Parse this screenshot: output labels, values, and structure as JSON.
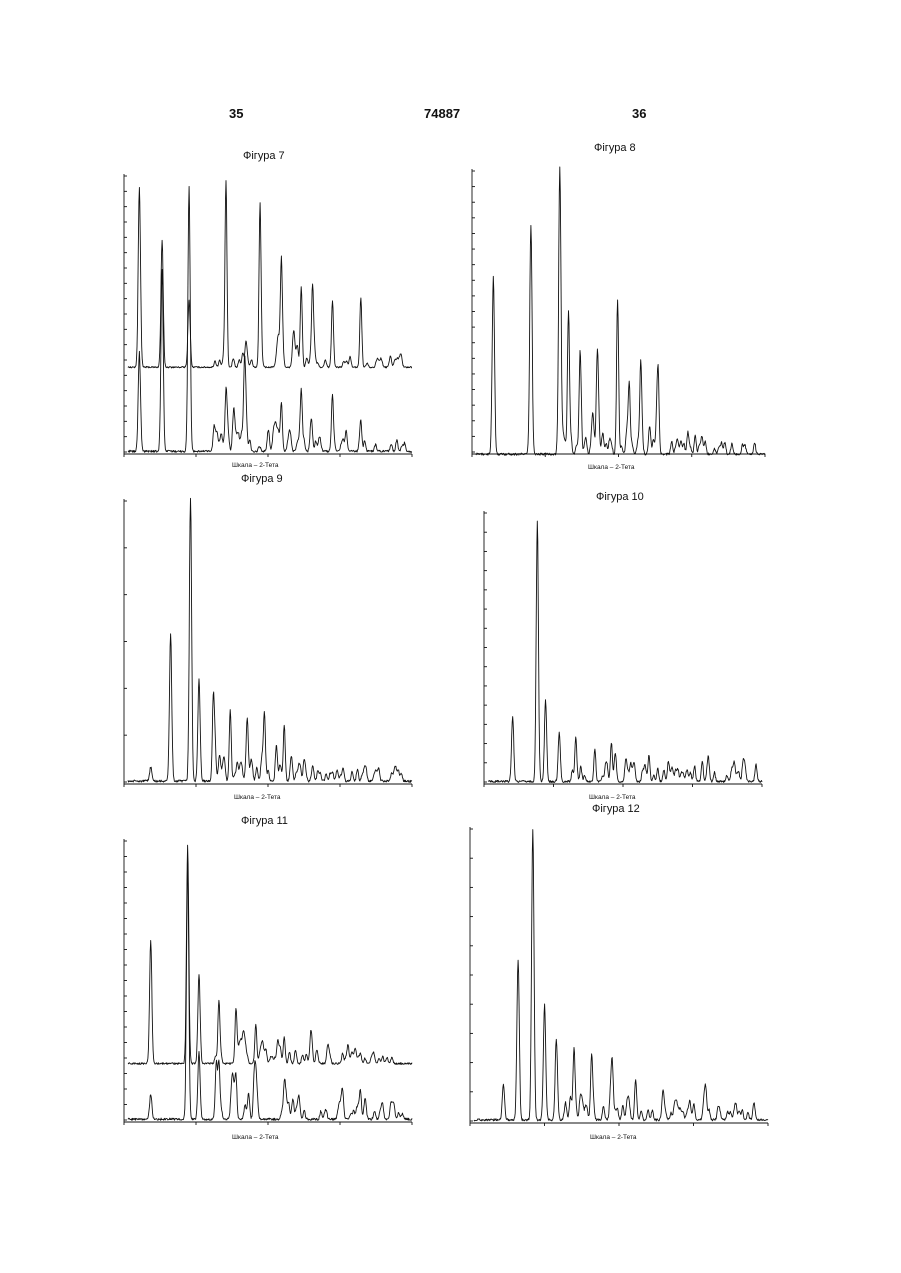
{
  "header": {
    "page_left": "35",
    "patent_number": "74887",
    "page_right": "36"
  },
  "figures": [
    {
      "id": "7",
      "title": "Фігура 7",
      "xlabel": "Шкала – 2-Тета"
    },
    {
      "id": "8",
      "title": "Фігура 8",
      "xlabel": "Шкала – 2-Тета"
    },
    {
      "id": "9",
      "title": "Фігура 9",
      "xlabel": "Шкала – 2-Тета"
    },
    {
      "id": "10",
      "title": "Фігура 10",
      "xlabel": "Шкала – 2-Тета"
    },
    {
      "id": "11",
      "title": "Фігура 11",
      "xlabel": "Шкала – 2-Тета"
    },
    {
      "id": "12",
      "title": "Фігура 12",
      "xlabel": "Шкала – 2-Тета"
    }
  ],
  "chart_data": [
    {
      "type": "line",
      "title": "Фігура 7",
      "xlabel": "Шкала – 2-Тета",
      "series": [
        {
          "peaks": [
            [
              0.04,
              0.94
            ],
            [
              0.12,
              0.66
            ],
            [
              0.215,
              0.35
            ],
            [
              0.345,
              0.95
            ],
            [
              0.465,
              0.8
            ],
            [
              0.54,
              0.54
            ],
            [
              0.61,
              0.42
            ],
            [
              0.65,
              0.36
            ],
            [
              0.72,
              0.35
            ],
            [
              0.82,
              0.31
            ]
          ]
        },
        {
          "peaks": [
            [
              0.04,
              0.36
            ],
            [
              0.12,
              0.66
            ],
            [
              0.215,
              0.96
            ],
            [
              0.345,
              0.2
            ],
            [
              0.41,
              0.28
            ],
            [
              0.54,
              0.18
            ],
            [
              0.61,
              0.2
            ],
            [
              0.72,
              0.18
            ],
            [
              0.82,
              0.1
            ]
          ]
        }
      ]
    },
    {
      "type": "line",
      "title": "Фігура 8",
      "xlabel": "Шкала – 2-Тета",
      "series": [
        {
          "peaks": [
            [
              0.06,
              0.62
            ],
            [
              0.19,
              0.8
            ],
            [
              0.29,
              1.0
            ],
            [
              0.32,
              0.5
            ],
            [
              0.36,
              0.32
            ],
            [
              0.42,
              0.3
            ],
            [
              0.49,
              0.42
            ],
            [
              0.53,
              0.25
            ],
            [
              0.57,
              0.32
            ],
            [
              0.63,
              0.28
            ]
          ]
        }
      ]
    },
    {
      "type": "line",
      "title": "Фігура 9",
      "xlabel": "Шкала – 2-Тета",
      "series": [
        {
          "peaks": [
            [
              0.08,
              0.05
            ],
            [
              0.15,
              0.52
            ],
            [
              0.22,
              1.0
            ],
            [
              0.25,
              0.36
            ],
            [
              0.3,
              0.22
            ],
            [
              0.36,
              0.25
            ],
            [
              0.42,
              0.17
            ],
            [
              0.48,
              0.18
            ],
            [
              0.55,
              0.15
            ],
            [
              0.62,
              0.07
            ]
          ]
        }
      ]
    },
    {
      "type": "line",
      "title": "Фігура 10",
      "xlabel": "Шкала – 2-Тета",
      "series": [
        {
          "peaks": [
            [
              0.09,
              0.24
            ],
            [
              0.18,
              0.96
            ],
            [
              0.21,
              0.3
            ],
            [
              0.26,
              0.18
            ],
            [
              0.32,
              0.15
            ],
            [
              0.39,
              0.12
            ],
            [
              0.45,
              0.1
            ],
            [
              0.52,
              0.06
            ]
          ]
        }
      ]
    },
    {
      "type": "line",
      "title": "Фігура 11",
      "xlabel": "Шкала – 2-Тета",
      "series": [
        {
          "peaks": [
            [
              0.08,
              0.55
            ],
            [
              0.21,
              0.98
            ],
            [
              0.25,
              0.4
            ],
            [
              0.32,
              0.28
            ],
            [
              0.38,
              0.22
            ],
            [
              0.45,
              0.18
            ],
            [
              0.55,
              0.12
            ]
          ]
        },
        {
          "peaks": [
            [
              0.08,
              0.09
            ],
            [
              0.21,
              0.92
            ],
            [
              0.25,
              0.24
            ],
            [
              0.32,
              0.2
            ],
            [
              0.38,
              0.15
            ],
            [
              0.45,
              0.14
            ],
            [
              0.55,
              0.1
            ]
          ]
        }
      ]
    },
    {
      "type": "line",
      "title": "Фігура 12",
      "xlabel": "Шкала – 2-Тета",
      "series": [
        {
          "peaks": [
            [
              0.1,
              0.12
            ],
            [
              0.15,
              0.55
            ],
            [
              0.2,
              1.0
            ],
            [
              0.24,
              0.4
            ],
            [
              0.28,
              0.28
            ],
            [
              0.34,
              0.24
            ],
            [
              0.4,
              0.22
            ],
            [
              0.47,
              0.16
            ],
            [
              0.55,
              0.1
            ]
          ]
        }
      ]
    }
  ]
}
